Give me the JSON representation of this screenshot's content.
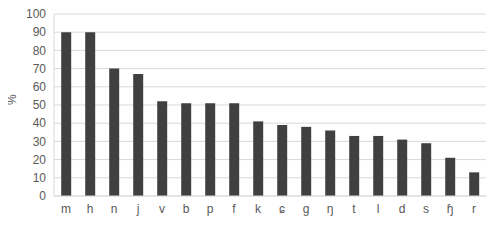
{
  "chart_data": {
    "type": "bar",
    "y_label": "%",
    "categories": [
      "m",
      "h",
      "n",
      "j",
      "v",
      "b",
      "p",
      "f",
      "k",
      "ɕ",
      "g",
      "ŋ",
      "t",
      "l",
      "d",
      "s",
      "ɧ",
      "r"
    ],
    "values": [
      90,
      90,
      70,
      67,
      52,
      51,
      51,
      51,
      41,
      39,
      38,
      36,
      33,
      33,
      31,
      29,
      21,
      13
    ],
    "color": "#404040",
    "ylim": [
      0,
      100
    ],
    "yticks": [
      0,
      10,
      20,
      30,
      40,
      50,
      60,
      70,
      80,
      90,
      100
    ],
    "grid": true
  }
}
